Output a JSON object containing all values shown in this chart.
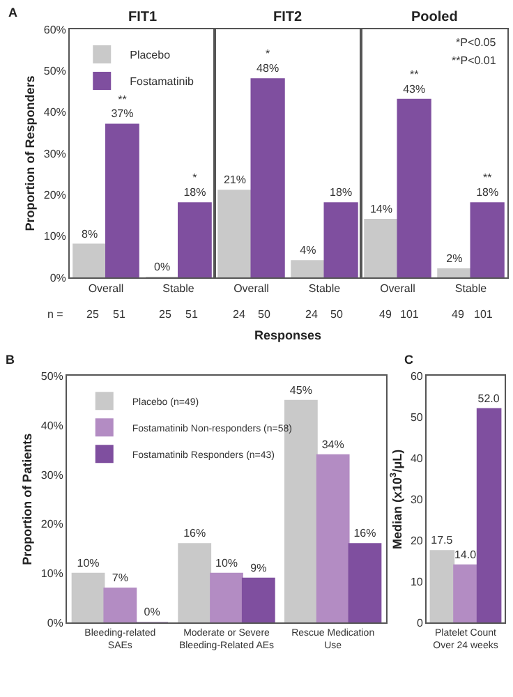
{
  "chart_data": [
    {
      "type": "bar",
      "title": "FIT1",
      "subtitle": "A",
      "ylabel": "Proportion of Responders",
      "categories": [
        "Overall",
        "Stable"
      ],
      "series": [
        {
          "name": "Placebo",
          "color": "#c9c9c9",
          "values": [
            8,
            0
          ],
          "value_labels": [
            "8%",
            "0%"
          ]
        },
        {
          "name": "Fostamatinib",
          "color": "#7f4f9f",
          "values": [
            37,
            18
          ],
          "value_labels": [
            "**\n37%",
            "*\n18%"
          ]
        }
      ],
      "ylim": [
        0,
        60
      ],
      "yticks": [
        {
          "value": 0,
          "label": "0%"
        },
        {
          "value": 10,
          "label": "10%"
        },
        {
          "value": 20,
          "label": "20%"
        },
        {
          "value": 30,
          "label": "30%"
        },
        {
          "value": 40,
          "label": "40%"
        },
        {
          "value": 50,
          "label": "50%"
        },
        {
          "value": 60,
          "label": "60%"
        }
      ],
      "legend": "top left",
      "annotations": [
        "n =",
        "25",
        "51",
        "25",
        "51"
      ]
    },
    {
      "type": "bar",
      "title": "FIT2",
      "xlabel": "Responses",
      "categories": [
        "Overall",
        "Stable"
      ],
      "series": [
        {
          "color": "#c9c9c9",
          "values": [
            21,
            4
          ],
          "value_labels": [
            "21%",
            "4%"
          ]
        },
        {
          "color": "#7f4f9f",
          "values": [
            48,
            18
          ],
          "value_labels": [
            "*\n48%",
            "18%"
          ]
        }
      ],
      "ylim": [
        0,
        60
      ],
      "tick_labels": "x",
      "annotations": [
        "24",
        "50",
        "24",
        "50"
      ]
    },
    {
      "type": "bar",
      "title": "Pooled",
      "categories": [
        "Overall",
        "Stable"
      ],
      "series": [
        {
          "color": "#c9c9c9",
          "values": [
            14,
            2
          ],
          "value_labels": [
            "14%",
            "2%"
          ]
        },
        {
          "color": "#7f4f9f",
          "values": [
            43,
            18
          ],
          "value_labels": [
            "**\n43%",
            "**\n18%"
          ]
        }
      ],
      "ylim": [
        0,
        60
      ],
      "tick_labels": "x",
      "annotations": [
        "*P<0.05",
        "**P<0.01",
        "49",
        "101",
        "49",
        "101"
      ]
    },
    {
      "type": "bar",
      "subtitle": "B",
      "ylabel": "Proportion of Patients",
      "categories": [
        "Bleeding-related\nSAEs",
        "Moderate or Severe\nBleeding-Related AEs",
        "Rescue Medication\nUse"
      ],
      "series": [
        {
          "name": "Placebo (n=49)",
          "color": "#c9c9c9",
          "values": [
            10,
            16,
            45
          ],
          "value_labels": [
            "10%",
            "16%",
            "45%"
          ]
        },
        {
          "name": "Fostamatinib Non-responders (n=58)",
          "color": "#b38cc3",
          "values": [
            7,
            10,
            34
          ],
          "value_labels": [
            "7%",
            "10%",
            "34%"
          ]
        },
        {
          "name": "Fostamatinib Responders (n=43)",
          "color": "#7f4f9f",
          "values": [
            0,
            9,
            16
          ],
          "value_labels": [
            "0%",
            "9%",
            "16%"
          ]
        }
      ],
      "ylim": [
        0,
        50
      ],
      "yticks": [
        {
          "value": 0,
          "label": "0%"
        },
        {
          "value": 10,
          "label": "10%"
        },
        {
          "value": 20,
          "label": "20%"
        },
        {
          "value": 30,
          "label": "30%"
        },
        {
          "value": 40,
          "label": "40%"
        },
        {
          "value": 50,
          "label": "50%"
        }
      ],
      "legend": "top left"
    },
    {
      "type": "bar",
      "subtitle": "C",
      "ylabel": "Median (x10$^{3}$/μL)",
      "categories": [
        "Platelet Count\nOver 24 weeks"
      ],
      "series": [
        {
          "color": "#c9c9c9",
          "values": [
            17.5
          ],
          "value_labels": [
            "17.5"
          ]
        },
        {
          "color": "#b38cc3",
          "values": [
            14.0
          ],
          "value_labels": [
            "14.0"
          ]
        },
        {
          "color": "#7f4f9f",
          "values": [
            52.0
          ],
          "value_labels": [
            "52.0"
          ]
        }
      ],
      "ylim": [
        0,
        60
      ],
      "yticks": [
        0,
        10,
        20,
        30,
        40,
        50,
        60
      ]
    }
  ]
}
